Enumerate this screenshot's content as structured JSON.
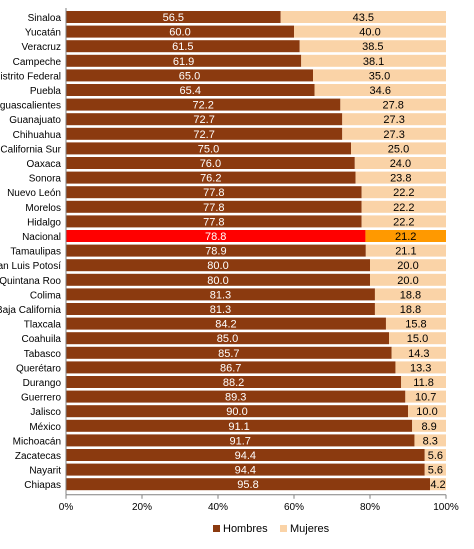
{
  "chart_data": {
    "type": "bar",
    "orientation": "horizontal",
    "stacked": true,
    "percent": true,
    "categories": [
      "Sinaloa",
      "Yucatán",
      "Veracruz",
      "Campeche",
      "Distrito Federal",
      "Puebla",
      "Aguascalientes",
      "Guanajuato",
      "Chihuahua",
      "Baja California Sur",
      "Oaxaca",
      "Sonora",
      "Nuevo León",
      "Morelos",
      "Hidalgo",
      "Nacional",
      "Tamaulipas",
      "San Luis Potosí",
      "Quintana Roo",
      "Colima",
      "Baja California",
      "Tlaxcala",
      "Coahuila",
      "Tabasco",
      "Querétaro",
      "Durango",
      "Guerrero",
      "Jalisco",
      "México",
      "Michoacán",
      "Zacatecas",
      "Nayarit",
      "Chiapas"
    ],
    "series": [
      {
        "name": "Hombres",
        "color": "#8B3A0F",
        "values": [
          56.5,
          60.0,
          61.5,
          61.9,
          65.0,
          65.4,
          72.2,
          72.7,
          72.7,
          75.0,
          76.0,
          76.2,
          77.8,
          77.8,
          77.8,
          78.8,
          78.9,
          80.0,
          80.0,
          81.3,
          81.3,
          84.2,
          85.0,
          85.7,
          86.7,
          88.2,
          89.3,
          90.0,
          91.1,
          91.7,
          94.4,
          94.4,
          95.8
        ]
      },
      {
        "name": "Mujeres",
        "color": "#FAD3A7",
        "values": [
          43.5,
          40.0,
          38.5,
          38.1,
          35.0,
          34.6,
          27.8,
          27.3,
          27.3,
          25.0,
          24.0,
          23.8,
          22.2,
          22.2,
          22.2,
          21.2,
          21.1,
          20.0,
          20.0,
          18.8,
          18.8,
          15.8,
          15.0,
          14.3,
          13.3,
          11.8,
          10.7,
          10.0,
          8.9,
          8.3,
          5.6,
          5.6,
          4.2
        ]
      }
    ],
    "highlight": {
      "category": "Nacional",
      "colors": [
        "#FF0000",
        "#FF9900"
      ]
    },
    "xlim": [
      0,
      100
    ],
    "xticks": [
      "0%",
      "20%",
      "40%",
      "60%",
      "80%",
      "100%"
    ],
    "legend": "bottom",
    "grid": false
  }
}
